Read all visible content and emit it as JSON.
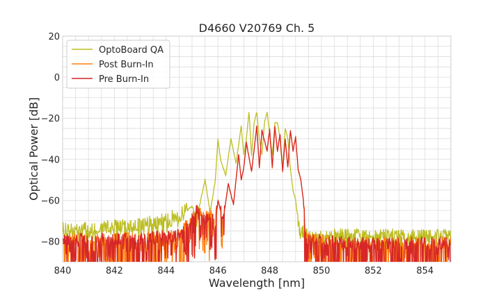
{
  "chart_data": {
    "type": "line",
    "title": "D4660 V20769 Ch. 5",
    "xlabel": "Wavelength [nm]",
    "ylabel": "Optical Power [dB]",
    "xlim": [
      840,
      855
    ],
    "ylim": [
      -90,
      20
    ],
    "xticks": [
      "840",
      "842",
      "844",
      "846",
      "848",
      "850",
      "852",
      "854"
    ],
    "yticks": [
      "20",
      "0",
      "−20",
      "−40",
      "−60",
      "−80"
    ],
    "grid": true,
    "legend_position": "top-left",
    "series": [
      {
        "name": "OptoBoard QA",
        "color": "#bcbd22",
        "x": [
          840.0,
          843.0,
          844.5,
          845.0,
          845.2,
          845.5,
          845.7,
          845.9,
          846.0,
          846.1,
          846.3,
          846.5,
          846.7,
          846.9,
          847.0,
          847.1,
          847.2,
          847.3,
          847.4,
          847.5,
          847.6,
          847.7,
          847.8,
          847.9,
          848.0,
          848.1,
          848.2,
          848.3,
          848.4,
          848.5,
          848.6,
          848.7,
          848.8,
          848.9,
          849.0,
          849.1,
          849.2,
          849.4,
          851.0,
          855.0
        ],
        "y": [
          -75,
          -73,
          -68,
          -63,
          -68,
          -50,
          -66,
          -50,
          -30,
          -40,
          -48,
          -30,
          -42,
          -24,
          -38,
          -30,
          -17,
          -38,
          -22,
          -17,
          -30,
          -38,
          -22,
          -17,
          -28,
          -38,
          -22,
          -22,
          -30,
          -45,
          -25,
          -30,
          -45,
          -55,
          -60,
          -70,
          -75,
          -78,
          -78,
          -78
        ]
      },
      {
        "name": "Post Burn-In",
        "color": "#ff7f0e",
        "x": [
          840.0,
          843.0,
          844.5,
          845.0,
          845.2,
          845.5,
          845.7,
          845.9,
          846.0,
          846.2,
          846.4,
          846.6,
          846.8,
          846.9,
          847.0,
          847.1,
          847.3,
          847.5,
          847.6,
          847.7,
          847.9,
          848.0,
          848.1,
          848.2,
          848.3,
          848.4,
          848.5,
          848.6,
          848.7,
          848.8,
          848.9,
          849.0,
          849.1,
          849.2,
          849.3,
          849.4,
          851.0,
          855.0
        ],
        "y": [
          -80,
          -80,
          -78,
          -70,
          -66,
          -70,
          -68,
          -72,
          -60,
          -70,
          -52,
          -62,
          -38,
          -50,
          -44,
          -32,
          -46,
          -24,
          -44,
          -26,
          -36,
          -26,
          -44,
          -24,
          -36,
          -28,
          -46,
          -30,
          -44,
          -26,
          -36,
          -29,
          -45,
          -50,
          -60,
          -80,
          -82,
          -82
        ]
      },
      {
        "name": "Pre Burn-In",
        "color": "#d62728",
        "x": [
          840.0,
          843.0,
          844.5,
          845.0,
          845.2,
          845.5,
          845.7,
          845.9,
          846.0,
          846.2,
          846.4,
          846.6,
          846.8,
          846.9,
          847.0,
          847.1,
          847.3,
          847.5,
          847.6,
          847.7,
          847.9,
          848.0,
          848.1,
          848.2,
          848.3,
          848.4,
          848.5,
          848.6,
          848.7,
          848.8,
          848.9,
          849.0,
          849.1,
          849.2,
          849.3,
          849.4,
          851.0,
          855.0
        ],
        "y": [
          -80,
          -80,
          -78,
          -70,
          -66,
          -70,
          -68,
          -72,
          -60,
          -70,
          -52,
          -62,
          -38,
          -50,
          -44,
          -32,
          -46,
          -24,
          -44,
          -26,
          -36,
          -25,
          -44,
          -24,
          -36,
          -28,
          -46,
          -30,
          -44,
          -26,
          -36,
          -29,
          -45,
          -50,
          -60,
          -80,
          -82,
          -82
        ]
      }
    ]
  }
}
